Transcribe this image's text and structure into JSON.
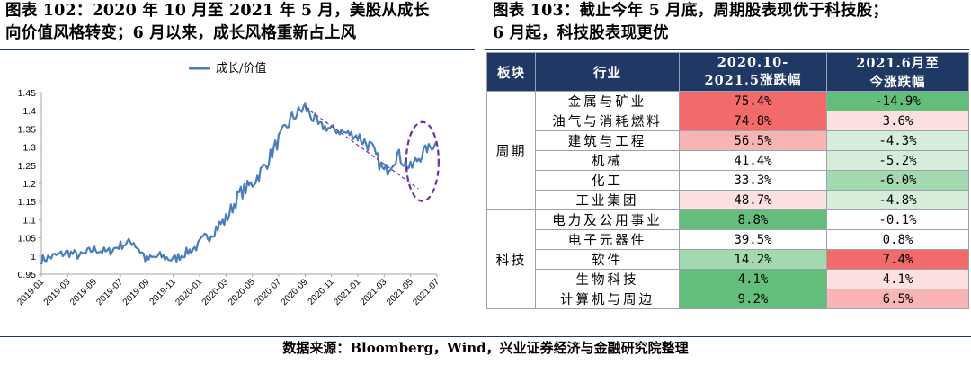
{
  "captions": {
    "left": [
      "图表  102：2020 年 10 月至 2021 年 5 月，美股从成长",
      "向价值风格转变；6 月以来，成长风格重新占上风"
    ],
    "right": [
      "图表  103：截止今年 5 月底，周期股表现优于科技股；",
      "6 月起，科技股表现更优"
    ]
  },
  "chart_data": {
    "type": "line",
    "title": "",
    "xlabel": "",
    "ylabel": "",
    "ylim": [
      0.95,
      1.45
    ],
    "yticks": [
      "0.95",
      "1",
      "1.05",
      "1.1",
      "1.15",
      "1.2",
      "1.25",
      "1.3",
      "1.35",
      "1.4",
      "1.45"
    ],
    "xticks": [
      "2019-01",
      "2019-03",
      "2019-05",
      "2019-07",
      "2019-09",
      "2019-11",
      "2020-01",
      "2020-03",
      "2020-05",
      "2020-07",
      "2020-09",
      "2020-11",
      "2021-01",
      "2021-03",
      "2021-05",
      "2021-07"
    ],
    "grid": false,
    "legend": "top-center",
    "series": [
      {
        "name": "成长/价值",
        "color": "#4a7ebb",
        "x": [
          "2019-01",
          "2019-02",
          "2019-03",
          "2019-04",
          "2019-05",
          "2019-06",
          "2019-07",
          "2019-08",
          "2019-09",
          "2019-10",
          "2019-11",
          "2019-12",
          "2020-01",
          "2020-02",
          "2020-03",
          "2020-04",
          "2020-05",
          "2020-06",
          "2020-07",
          "2020-08",
          "2020-09",
          "2020-10",
          "2020-11",
          "2020-12",
          "2021-01",
          "2021-02",
          "2021-03",
          "2021-04",
          "2021-05",
          "2021-06",
          "2021-07"
        ],
        "values": [
          0.99,
          1.0,
          1.01,
          1.0,
          1.02,
          1.01,
          1.03,
          1.04,
          0.99,
          1.0,
          0.99,
          1.01,
          1.03,
          1.07,
          1.1,
          1.17,
          1.2,
          1.25,
          1.32,
          1.38,
          1.41,
          1.36,
          1.35,
          1.34,
          1.33,
          1.3,
          1.23,
          1.28,
          1.24,
          1.29,
          1.31
        ]
      }
    ],
    "annotations": [
      "dashed-trend-line",
      "dashed-ellipse"
    ]
  },
  "table": {
    "headers": [
      "板块",
      "行业",
      "2020.10-\n2021.5涨跌幅",
      "2021.6月至\n今涨跌幅"
    ],
    "groups": [
      {
        "sector": "周期",
        "rows": [
          {
            "industry": "金属与矿业",
            "v1": "75.4%",
            "v2": "-14.9%"
          },
          {
            "industry": "油气与消耗燃料",
            "v1": "74.8%",
            "v2": "3.6%"
          },
          {
            "industry": "建筑与工程",
            "v1": "56.5%",
            "v2": "-4.3%"
          },
          {
            "industry": "机械",
            "v1": "41.4%",
            "v2": "-5.2%"
          },
          {
            "industry": "化工",
            "v1": "33.3%",
            "v2": "-6.0%"
          },
          {
            "industry": "工业集团",
            "v1": "48.7%",
            "v2": "-4.8%"
          }
        ]
      },
      {
        "sector": "科技",
        "rows": [
          {
            "industry": "电力及公用事业",
            "v1": "8.8%",
            "v2": "-0.1%"
          },
          {
            "industry": "电子元器件",
            "v1": "39.5%",
            "v2": "0.8%"
          },
          {
            "industry": "软件",
            "v1": "14.2%",
            "v2": "7.4%"
          },
          {
            "industry": "生物科技",
            "v1": "4.1%",
            "v2": "4.1%"
          },
          {
            "industry": "计算机与周边",
            "v1": "9.2%",
            "v2": "6.5%"
          }
        ]
      }
    ],
    "colors": {
      "header": "#1f3864",
      "strong_red": "#f26b6b",
      "mid_red": "#f9b4b4",
      "light_red": "#fde0e0",
      "strong_green": "#63be7b",
      "mid_green": "#a3d9ae",
      "light_green": "#d6eed9",
      "white": "#ffffff"
    }
  },
  "source": "数据来源：Bloomberg，Wind，兴业证券经济与金融研究院整理"
}
